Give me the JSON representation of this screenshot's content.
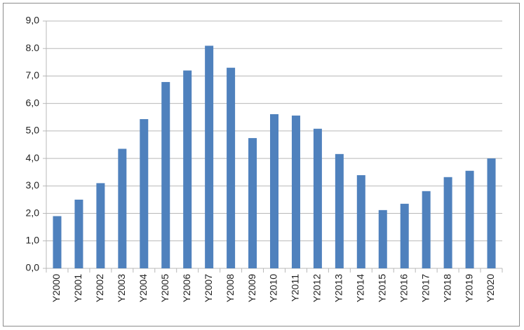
{
  "chart_data": {
    "type": "bar",
    "categories": [
      "Y2000",
      "Y2001",
      "Y2002",
      "Y2003",
      "Y2004",
      "Y2005",
      "Y2006",
      "Y2007",
      "Y2008",
      "Y2009",
      "Y2010",
      "Y2011",
      "Y2012",
      "Y2013",
      "Y2014",
      "Y2015",
      "Y2016",
      "Y2017",
      "Y2018",
      "Y2019",
      "Y2020"
    ],
    "values": [
      1.9,
      2.5,
      3.1,
      4.35,
      5.43,
      6.78,
      7.2,
      8.1,
      7.3,
      4.74,
      5.61,
      5.56,
      5.08,
      4.16,
      3.39,
      2.12,
      2.35,
      2.81,
      3.32,
      3.55,
      4.0
    ],
    "color": "#4f81bd",
    "ylim": [
      0,
      9
    ],
    "yticks": [
      {
        "value": 0,
        "label": "0,0"
      },
      {
        "value": 1,
        "label": "1,0"
      },
      {
        "value": 2,
        "label": "2,0"
      },
      {
        "value": 3,
        "label": "3,0"
      },
      {
        "value": 4,
        "label": "4,0"
      },
      {
        "value": 5,
        "label": "5,0"
      },
      {
        "value": 6,
        "label": "6,0"
      },
      {
        "value": 7,
        "label": "7,0"
      },
      {
        "value": 8,
        "label": "8.0"
      },
      {
        "value": 9,
        "label": "9,0"
      }
    ],
    "grid": true
  }
}
